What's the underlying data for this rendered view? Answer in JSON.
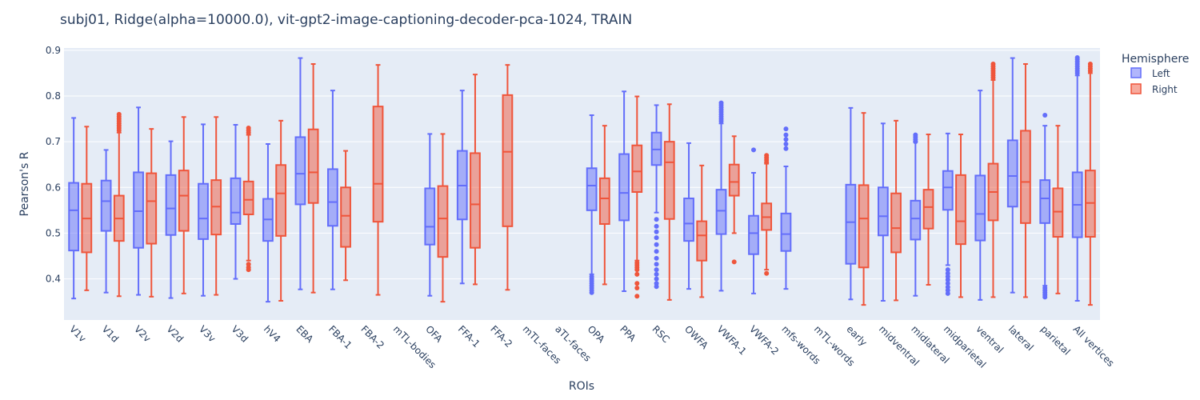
{
  "chart_data": {
    "type": "box",
    "title": "subj01, Ridge(alpha=10000.0), vit-gpt2-image-captioning-decoder-pca-1024, TRAIN",
    "xlabel": "ROIs",
    "ylabel": "Pearson's R",
    "ylim": [
      0.31,
      0.905
    ],
    "yticks": [
      0.4,
      0.5,
      0.6,
      0.7,
      0.8,
      0.9
    ],
    "grid": true,
    "legend": {
      "title": "Hemisphere",
      "position": "top-right"
    },
    "categories": [
      "V1v",
      "V1d",
      "V2v",
      "V2d",
      "V3v",
      "V3d",
      "hV4",
      "EBA",
      "FBA-1",
      "FBA-2",
      "mTL-bodies",
      "OFA",
      "FFA-1",
      "FFA-2",
      "mTL-faces",
      "aTL-faces",
      "OPA",
      "PPA",
      "RSC",
      "OWFA",
      "VWFA-1",
      "VWFA-2",
      "mfs-words",
      "mTL-words",
      "early",
      "midventral",
      "midlateral",
      "midparietal",
      "ventral",
      "lateral",
      "parietal",
      "All vertices"
    ],
    "series": [
      {
        "name": "Left",
        "color": "#636efa",
        "fill": "rgba(99,110,250,0.5)",
        "boxes": [
          {
            "min": 0.357,
            "q1": 0.462,
            "median": 0.55,
            "q3": 0.61,
            "max": 0.752,
            "outliers": []
          },
          {
            "min": 0.37,
            "q1": 0.505,
            "median": 0.57,
            "q3": 0.615,
            "max": 0.682,
            "outliers": []
          },
          {
            "min": 0.365,
            "q1": 0.468,
            "median": 0.548,
            "q3": 0.633,
            "max": 0.775,
            "outliers": []
          },
          {
            "min": 0.358,
            "q1": 0.496,
            "median": 0.554,
            "q3": 0.627,
            "max": 0.701,
            "outliers": []
          },
          {
            "min": 0.363,
            "q1": 0.487,
            "median": 0.532,
            "q3": 0.608,
            "max": 0.738,
            "outliers": []
          },
          {
            "min": 0.4,
            "q1": 0.52,
            "median": 0.545,
            "q3": 0.62,
            "max": 0.737,
            "outliers": []
          },
          {
            "min": 0.35,
            "q1": 0.483,
            "median": 0.53,
            "q3": 0.575,
            "max": 0.695,
            "outliers": []
          },
          {
            "min": 0.377,
            "q1": 0.563,
            "median": 0.63,
            "q3": 0.71,
            "max": 0.883,
            "outliers": []
          },
          {
            "min": 0.377,
            "q1": 0.516,
            "median": 0.568,
            "q3": 0.64,
            "max": 0.812,
            "outliers": []
          },
          null,
          null,
          {
            "min": 0.363,
            "q1": 0.475,
            "median": 0.514,
            "q3": 0.598,
            "max": 0.717,
            "outliers": []
          },
          {
            "min": 0.39,
            "q1": 0.53,
            "median": 0.604,
            "q3": 0.68,
            "max": 0.812,
            "outliers": []
          },
          null,
          null,
          null,
          {
            "min": 0.41,
            "q1": 0.55,
            "median": 0.604,
            "q3": 0.642,
            "max": 0.758,
            "outliers": [
              0.37,
              0.375,
              0.38,
              0.385,
              0.39,
              0.395,
              0.4,
              0.405
            ]
          },
          {
            "min": 0.373,
            "q1": 0.528,
            "median": 0.588,
            "q3": 0.673,
            "max": 0.81,
            "outliers": []
          },
          {
            "min": 0.545,
            "q1": 0.649,
            "median": 0.683,
            "q3": 0.72,
            "max": 0.78,
            "outliers": [
              0.383,
              0.39,
              0.4,
              0.41,
              0.42,
              0.432,
              0.445,
              0.46,
              0.475,
              0.49,
              0.503,
              0.515,
              0.53
            ]
          },
          {
            "min": 0.378,
            "q1": 0.483,
            "median": 0.521,
            "q3": 0.576,
            "max": 0.697,
            "outliers": []
          },
          {
            "min": 0.374,
            "q1": 0.498,
            "median": 0.549,
            "q3": 0.595,
            "max": 0.74,
            "outliers": [
              0.745,
              0.75,
              0.755,
              0.76,
              0.765,
              0.77,
              0.775,
              0.78,
              0.785
            ]
          },
          {
            "min": 0.368,
            "q1": 0.454,
            "median": 0.5,
            "q3": 0.538,
            "max": 0.632,
            "outliers": [
              0.682
            ]
          },
          {
            "min": 0.378,
            "q1": 0.461,
            "median": 0.498,
            "q3": 0.543,
            "max": 0.646,
            "outliers": [
              0.685,
              0.695,
              0.705,
              0.715,
              0.728
            ]
          },
          null,
          {
            "min": 0.355,
            "q1": 0.433,
            "median": 0.524,
            "q3": 0.606,
            "max": 0.774,
            "outliers": []
          },
          {
            "min": 0.352,
            "q1": 0.495,
            "median": 0.537,
            "q3": 0.6,
            "max": 0.74,
            "outliers": []
          },
          {
            "min": 0.363,
            "q1": 0.486,
            "median": 0.532,
            "q3": 0.571,
            "max": 0.7,
            "outliers": [
              0.7,
              0.705,
              0.71,
              0.715
            ]
          },
          {
            "min": 0.43,
            "q1": 0.551,
            "median": 0.6,
            "q3": 0.636,
            "max": 0.718,
            "outliers": [
              0.368,
              0.375,
              0.382,
              0.39,
              0.398,
              0.405,
              0.412,
              0.42
            ]
          },
          {
            "min": 0.354,
            "q1": 0.484,
            "median": 0.542,
            "q3": 0.626,
            "max": 0.812,
            "outliers": []
          },
          {
            "min": 0.37,
            "q1": 0.558,
            "median": 0.625,
            "q3": 0.703,
            "max": 0.883,
            "outliers": []
          },
          {
            "min": 0.385,
            "q1": 0.522,
            "median": 0.576,
            "q3": 0.616,
            "max": 0.735,
            "outliers": [
              0.36,
              0.365,
              0.37,
              0.375,
              0.38,
              0.758
            ]
          },
          {
            "min": 0.352,
            "q1": 0.491,
            "median": 0.562,
            "q3": 0.633,
            "max": 0.845,
            "outliers": [
              0.85,
              0.855,
              0.86,
              0.865,
              0.87,
              0.875,
              0.88,
              0.884
            ]
          }
        ]
      },
      {
        "name": "Right",
        "color": "#ef553b",
        "fill": "rgba(239,85,59,0.5)",
        "boxes": [
          {
            "min": 0.375,
            "q1": 0.458,
            "median": 0.532,
            "q3": 0.608,
            "max": 0.733,
            "outliers": []
          },
          {
            "min": 0.362,
            "q1": 0.483,
            "median": 0.532,
            "q3": 0.582,
            "max": 0.72,
            "outliers": [
              0.725,
              0.73,
              0.735,
              0.74,
              0.745,
              0.75,
              0.755,
              0.76
            ]
          },
          {
            "min": 0.361,
            "q1": 0.477,
            "median": 0.57,
            "q3": 0.631,
            "max": 0.728,
            "outliers": []
          },
          {
            "min": 0.368,
            "q1": 0.505,
            "median": 0.582,
            "q3": 0.637,
            "max": 0.754,
            "outliers": []
          },
          {
            "min": 0.365,
            "q1": 0.497,
            "median": 0.558,
            "q3": 0.616,
            "max": 0.754,
            "outliers": []
          },
          {
            "min": 0.44,
            "q1": 0.541,
            "median": 0.573,
            "q3": 0.613,
            "max": 0.715,
            "outliers": [
              0.42,
              0.425,
              0.432,
              0.72,
              0.725,
              0.73
            ]
          },
          {
            "min": 0.352,
            "q1": 0.494,
            "median": 0.587,
            "q3": 0.649,
            "max": 0.746,
            "outliers": []
          },
          {
            "min": 0.37,
            "q1": 0.566,
            "median": 0.633,
            "q3": 0.727,
            "max": 0.87,
            "outliers": []
          },
          {
            "min": 0.397,
            "q1": 0.47,
            "median": 0.538,
            "q3": 0.6,
            "max": 0.68,
            "outliers": []
          },
          {
            "min": 0.365,
            "q1": 0.525,
            "median": 0.608,
            "q3": 0.777,
            "max": 0.868,
            "outliers": []
          },
          null,
          {
            "min": 0.35,
            "q1": 0.448,
            "median": 0.532,
            "q3": 0.603,
            "max": 0.717,
            "outliers": []
          },
          {
            "min": 0.388,
            "q1": 0.468,
            "median": 0.563,
            "q3": 0.675,
            "max": 0.847,
            "outliers": []
          },
          {
            "min": 0.376,
            "q1": 0.515,
            "median": 0.678,
            "q3": 0.802,
            "max": 0.868,
            "outliers": []
          },
          null,
          null,
          {
            "min": 0.388,
            "q1": 0.52,
            "median": 0.576,
            "q3": 0.62,
            "max": 0.735,
            "outliers": []
          },
          {
            "min": 0.44,
            "q1": 0.59,
            "median": 0.635,
            "q3": 0.692,
            "max": 0.799,
            "outliers": [
              0.362,
              0.38,
              0.39,
              0.41,
              0.42,
              0.425,
              0.43,
              0.435
            ]
          },
          {
            "min": 0.354,
            "q1": 0.531,
            "median": 0.655,
            "q3": 0.7,
            "max": 0.782,
            "outliers": []
          },
          {
            "min": 0.36,
            "q1": 0.44,
            "median": 0.495,
            "q3": 0.526,
            "max": 0.648,
            "outliers": []
          },
          {
            "min": 0.5,
            "q1": 0.582,
            "median": 0.612,
            "q3": 0.65,
            "max": 0.712,
            "outliers": [
              0.437
            ]
          },
          {
            "min": 0.42,
            "q1": 0.507,
            "median": 0.535,
            "q3": 0.565,
            "max": 0.652,
            "outliers": [
              0.412,
              0.655,
              0.66,
              0.665,
              0.67
            ]
          },
          null,
          null,
          {
            "min": 0.343,
            "q1": 0.425,
            "median": 0.532,
            "q3": 0.605,
            "max": 0.763,
            "outliers": []
          },
          {
            "min": 0.353,
            "q1": 0.458,
            "median": 0.511,
            "q3": 0.587,
            "max": 0.746,
            "outliers": []
          },
          {
            "min": 0.387,
            "q1": 0.51,
            "median": 0.557,
            "q3": 0.595,
            "max": 0.716,
            "outliers": []
          },
          {
            "min": 0.36,
            "q1": 0.476,
            "median": 0.526,
            "q3": 0.627,
            "max": 0.716,
            "outliers": []
          },
          {
            "min": 0.36,
            "q1": 0.528,
            "median": 0.59,
            "q3": 0.652,
            "max": 0.835,
            "outliers": [
              0.84,
              0.845,
              0.85,
              0.855,
              0.86,
              0.865,
              0.87
            ]
          },
          {
            "min": 0.36,
            "q1": 0.522,
            "median": 0.612,
            "q3": 0.724,
            "max": 0.87,
            "outliers": []
          },
          {
            "min": 0.368,
            "q1": 0.492,
            "median": 0.547,
            "q3": 0.598,
            "max": 0.735,
            "outliers": []
          },
          {
            "min": 0.343,
            "q1": 0.492,
            "median": 0.566,
            "q3": 0.637,
            "max": 0.85,
            "outliers": [
              0.855,
              0.86,
              0.865,
              0.87
            ]
          }
        ]
      }
    ]
  }
}
